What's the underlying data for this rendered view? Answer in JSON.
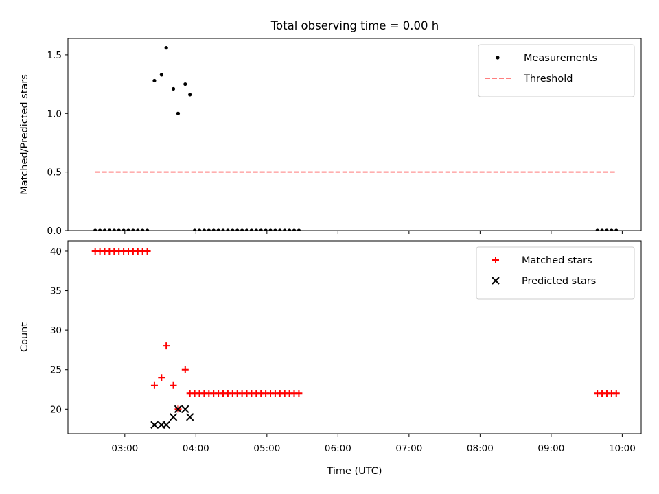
{
  "figure": {
    "title": "Total observing time = 0.00 h"
  },
  "chart_data": [
    {
      "type": "scatter",
      "ylabel": "Matched/Predicted stars",
      "xlabel": "",
      "ylim": [
        0,
        1.64
      ],
      "yticks": [
        0.0,
        0.5,
        1.0,
        1.5
      ],
      "ytick_labels": [
        "0.0",
        "0.5",
        "1.0",
        "1.5"
      ],
      "xlim": [
        "02:12",
        "10:16"
      ],
      "xticks": [
        "03:00",
        "04:00",
        "05:00",
        "06:00",
        "07:00",
        "08:00",
        "09:00",
        "10:00"
      ],
      "show_xtick_labels": false,
      "grid": false,
      "legend": {
        "placement": "upper-right",
        "entries": [
          "Measurements",
          "Threshold"
        ]
      },
      "series": [
        {
          "name": "Measurements",
          "marker": "dot",
          "color": "#000000",
          "points": [
            {
              "x": "02:35",
              "y": 0.0
            },
            {
              "x": "02:39",
              "y": 0.0
            },
            {
              "x": "02:43",
              "y": 0.0
            },
            {
              "x": "02:47",
              "y": 0.0
            },
            {
              "x": "02:51",
              "y": 0.0
            },
            {
              "x": "02:55",
              "y": 0.0
            },
            {
              "x": "02:59",
              "y": 0.0
            },
            {
              "x": "03:03",
              "y": 0.0
            },
            {
              "x": "03:07",
              "y": 0.0
            },
            {
              "x": "03:11",
              "y": 0.0
            },
            {
              "x": "03:15",
              "y": 0.0
            },
            {
              "x": "03:19",
              "y": 0.0
            },
            {
              "x": "03:25",
              "y": 1.28
            },
            {
              "x": "03:31",
              "y": 1.33
            },
            {
              "x": "03:35",
              "y": 1.56
            },
            {
              "x": "03:41",
              "y": 1.21
            },
            {
              "x": "03:45",
              "y": 1.0
            },
            {
              "x": "03:51",
              "y": 1.25
            },
            {
              "x": "03:55",
              "y": 1.16
            },
            {
              "x": "03:59",
              "y": 0.0
            },
            {
              "x": "04:03",
              "y": 0.0
            },
            {
              "x": "04:07",
              "y": 0.0
            },
            {
              "x": "04:11",
              "y": 0.0
            },
            {
              "x": "04:15",
              "y": 0.0
            },
            {
              "x": "04:19",
              "y": 0.0
            },
            {
              "x": "04:23",
              "y": 0.0
            },
            {
              "x": "04:27",
              "y": 0.0
            },
            {
              "x": "04:31",
              "y": 0.0
            },
            {
              "x": "04:35",
              "y": 0.0
            },
            {
              "x": "04:39",
              "y": 0.0
            },
            {
              "x": "04:43",
              "y": 0.0
            },
            {
              "x": "04:47",
              "y": 0.0
            },
            {
              "x": "04:51",
              "y": 0.0
            },
            {
              "x": "04:55",
              "y": 0.0
            },
            {
              "x": "04:59",
              "y": 0.0
            },
            {
              "x": "05:03",
              "y": 0.0
            },
            {
              "x": "05:07",
              "y": 0.0
            },
            {
              "x": "05:11",
              "y": 0.0
            },
            {
              "x": "05:15",
              "y": 0.0
            },
            {
              "x": "05:19",
              "y": 0.0
            },
            {
              "x": "05:23",
              "y": 0.0
            },
            {
              "x": "05:27",
              "y": 0.0
            },
            {
              "x": "09:39",
              "y": 0.0
            },
            {
              "x": "09:43",
              "y": 0.0
            },
            {
              "x": "09:47",
              "y": 0.0
            },
            {
              "x": "09:51",
              "y": 0.0
            },
            {
              "x": "09:55",
              "y": 0.0
            }
          ]
        },
        {
          "name": "Threshold",
          "line_style": "dashed",
          "color": "#ff7f7f",
          "points": [
            {
              "x": "02:35",
              "y": 0.5
            },
            {
              "x": "09:55",
              "y": 0.5
            }
          ]
        }
      ]
    },
    {
      "type": "scatter",
      "ylabel": "Count",
      "xlabel": "Time (UTC)",
      "ylim": [
        16.9,
        41.3
      ],
      "yticks": [
        20,
        25,
        30,
        35,
        40
      ],
      "ytick_labels": [
        "20",
        "25",
        "30",
        "35",
        "40"
      ],
      "xlim": [
        "02:12",
        "10:16"
      ],
      "xticks": [
        "03:00",
        "04:00",
        "05:00",
        "06:00",
        "07:00",
        "08:00",
        "09:00",
        "10:00"
      ],
      "xtick_labels": [
        "03:00",
        "04:00",
        "05:00",
        "06:00",
        "07:00",
        "08:00",
        "09:00",
        "10:00"
      ],
      "show_xtick_labels": true,
      "grid": false,
      "legend": {
        "placement": "upper-right",
        "entries": [
          "Matched stars",
          "Predicted stars"
        ]
      },
      "series": [
        {
          "name": "Matched stars",
          "marker": "plus",
          "color": "#ff0000",
          "points": [
            {
              "x": "02:35",
              "y": 40
            },
            {
              "x": "02:39",
              "y": 40
            },
            {
              "x": "02:43",
              "y": 40
            },
            {
              "x": "02:47",
              "y": 40
            },
            {
              "x": "02:51",
              "y": 40
            },
            {
              "x": "02:55",
              "y": 40
            },
            {
              "x": "02:59",
              "y": 40
            },
            {
              "x": "03:03",
              "y": 40
            },
            {
              "x": "03:07",
              "y": 40
            },
            {
              "x": "03:11",
              "y": 40
            },
            {
              "x": "03:15",
              "y": 40
            },
            {
              "x": "03:19",
              "y": 40
            },
            {
              "x": "03:25",
              "y": 23
            },
            {
              "x": "03:31",
              "y": 24
            },
            {
              "x": "03:35",
              "y": 28
            },
            {
              "x": "03:41",
              "y": 23
            },
            {
              "x": "03:45",
              "y": 20
            },
            {
              "x": "03:51",
              "y": 25
            },
            {
              "x": "03:55",
              "y": 22
            },
            {
              "x": "03:59",
              "y": 22
            },
            {
              "x": "04:03",
              "y": 22
            },
            {
              "x": "04:07",
              "y": 22
            },
            {
              "x": "04:11",
              "y": 22
            },
            {
              "x": "04:15",
              "y": 22
            },
            {
              "x": "04:19",
              "y": 22
            },
            {
              "x": "04:23",
              "y": 22
            },
            {
              "x": "04:27",
              "y": 22
            },
            {
              "x": "04:31",
              "y": 22
            },
            {
              "x": "04:35",
              "y": 22
            },
            {
              "x": "04:39",
              "y": 22
            },
            {
              "x": "04:43",
              "y": 22
            },
            {
              "x": "04:47",
              "y": 22
            },
            {
              "x": "04:51",
              "y": 22
            },
            {
              "x": "04:55",
              "y": 22
            },
            {
              "x": "04:59",
              "y": 22
            },
            {
              "x": "05:03",
              "y": 22
            },
            {
              "x": "05:07",
              "y": 22
            },
            {
              "x": "05:11",
              "y": 22
            },
            {
              "x": "05:15",
              "y": 22
            },
            {
              "x": "05:19",
              "y": 22
            },
            {
              "x": "05:23",
              "y": 22
            },
            {
              "x": "05:27",
              "y": 22
            },
            {
              "x": "09:39",
              "y": 22
            },
            {
              "x": "09:43",
              "y": 22
            },
            {
              "x": "09:47",
              "y": 22
            },
            {
              "x": "09:51",
              "y": 22
            },
            {
              "x": "09:55",
              "y": 22
            }
          ]
        },
        {
          "name": "Predicted stars",
          "marker": "x",
          "color": "#000000",
          "points": [
            {
              "x": "03:25",
              "y": 18
            },
            {
              "x": "03:31",
              "y": 18
            },
            {
              "x": "03:35",
              "y": 18
            },
            {
              "x": "03:41",
              "y": 19
            },
            {
              "x": "03:45",
              "y": 20
            },
            {
              "x": "03:51",
              "y": 20
            },
            {
              "x": "03:55",
              "y": 19
            }
          ]
        }
      ]
    }
  ]
}
